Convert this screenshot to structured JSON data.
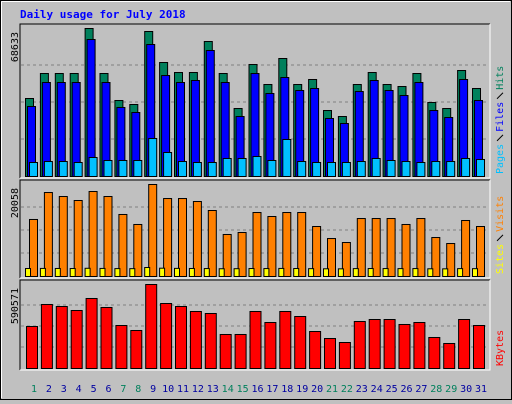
{
  "chart_data": [
    {
      "type": "bar",
      "title": "Daily usage for July 2018",
      "categories": [
        "1",
        "2",
        "3",
        "4",
        "5",
        "6",
        "7",
        "8",
        "9",
        "10",
        "11",
        "12",
        "13",
        "14",
        "15",
        "16",
        "17",
        "18",
        "19",
        "20",
        "21",
        "22",
        "23",
        "24",
        "25",
        "26",
        "27",
        "28",
        "29",
        "30",
        "31"
      ],
      "ylim": [
        0,
        68633
      ],
      "yticks": [
        68633
      ],
      "grid": true,
      "series": [
        {
          "name": "Hits",
          "color": "#00805c",
          "values": [
            36170,
            47760,
            47760,
            47760,
            68633,
            47760,
            35240,
            33390,
            67240,
            52860,
            48220,
            48220,
            62600,
            47760,
            31530,
            51930,
            42660,
            54720,
            42660,
            44980,
            30600,
            27820,
            42660,
            48220,
            42660,
            41730,
            47760,
            34310,
            31530,
            49150,
            40810
          ]
        },
        {
          "name": "Files",
          "color": "#0000ff",
          "values": [
            32460,
            43590,
            43590,
            43590,
            63530,
            43590,
            32000,
            29680,
            61210,
            46830,
            43590,
            44520,
            58430,
            43590,
            27820,
            47760,
            38490,
            45910,
            39880,
            40810,
            26900,
            24580,
            39410,
            44520,
            39880,
            37560,
            43590,
            30600,
            27360,
            44980,
            35240
          ]
        },
        {
          "name": "Pages",
          "color": "#00c0ff",
          "values": [
            6490,
            6950,
            6950,
            6490,
            8810,
            7420,
            7420,
            7420,
            17620,
            11130,
            6950,
            6490,
            6490,
            8350,
            8350,
            9270,
            7420,
            17160,
            6950,
            6490,
            6490,
            6490,
            6950,
            8350,
            7420,
            6950,
            6490,
            6950,
            6950,
            8350,
            7880
          ]
        }
      ]
    },
    {
      "type": "bar",
      "ylim": [
        0,
        20058
      ],
      "yticks": [
        20058
      ],
      "grid": true,
      "series": [
        {
          "name": "Visits",
          "color": "#ff8000",
          "values": [
            12430,
            18310,
            17440,
            16570,
            18530,
            17440,
            13520,
            11340,
            20058,
            17000,
            17000,
            16350,
            14390,
            9160,
            9590,
            13950,
            13080,
            13950,
            13950,
            10900,
            8280,
            7410,
            12640,
            12640,
            12640,
            11340,
            12640,
            8500,
            7190,
            12210,
            10900
          ]
        },
        {
          "name": "Sites",
          "color": "#ffff00",
          "values": [
            1740,
            1760,
            1750,
            1740,
            1790,
            1760,
            1720,
            1710,
            1960,
            1810,
            1770,
            1750,
            1730,
            1690,
            1700,
            1740,
            1730,
            1760,
            1740,
            1710,
            1680,
            1670,
            1720,
            1740,
            1730,
            1720,
            1730,
            1680,
            1670,
            1720,
            1710
          ]
        }
      ]
    },
    {
      "type": "bar",
      "ylim": [
        0,
        590571
      ],
      "yticks": [
        590571
      ],
      "grid": true,
      "series": [
        {
          "name": "KBytes",
          "color": "#ff0000",
          "values": [
            295300,
            450000,
            435900,
            407800,
            492200,
            428900,
            302300,
            267200,
            590571,
            457000,
            435900,
            400800,
            386700,
            239100,
            239100,
            400800,
            323400,
            400800,
            365600,
            260100,
            210900,
            182800,
            330500,
            344500,
            344500,
            309400,
            323400,
            218000,
            175800,
            344500,
            302300
          ]
        }
      ]
    }
  ]
}
